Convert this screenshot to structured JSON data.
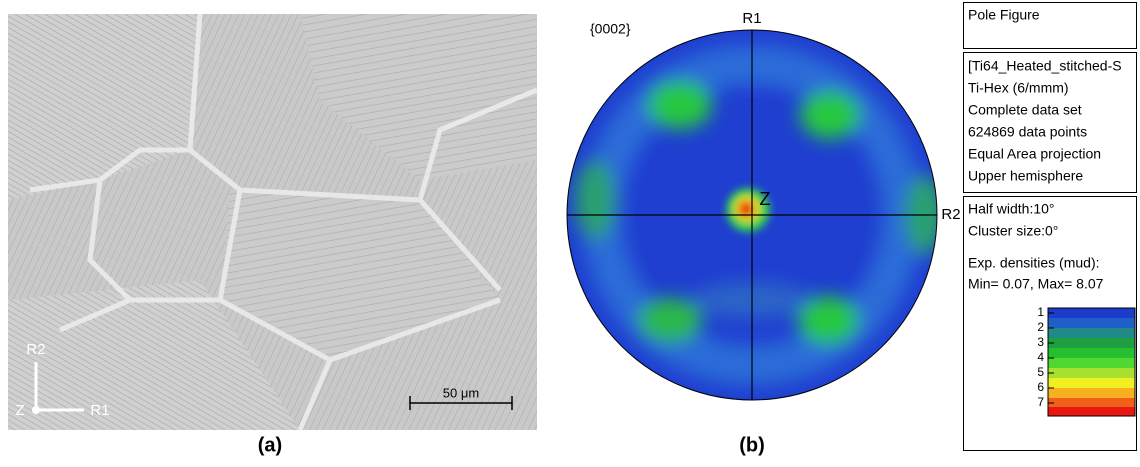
{
  "panel_a": {
    "axis_vertical": "R2",
    "axis_normal": "Z",
    "axis_horizontal": "R1",
    "scale_bar": "50 μm",
    "caption": "(a)"
  },
  "panel_b": {
    "caption": "(b)",
    "pole_figure": {
      "plane": "{0002}",
      "top": "R1",
      "right": "R2",
      "center": "Z"
    },
    "info": {
      "title": "Pole Figure",
      "details": [
        "[Ti64_Heated_stitched-S",
        "Ti-Hex (6/mmm)",
        "Complete data set",
        "624869 data points",
        "Equal Area projection",
        "Upper hemisphere"
      ],
      "settings": [
        "Half width:10°",
        "Cluster size:0°"
      ],
      "densities_label": "Exp. densities (mud):",
      "densities_range": "Min= 0.07, Max= 8.07"
    },
    "colorbar_ticks": [
      1,
      2,
      3,
      4,
      5,
      6,
      7
    ]
  }
}
